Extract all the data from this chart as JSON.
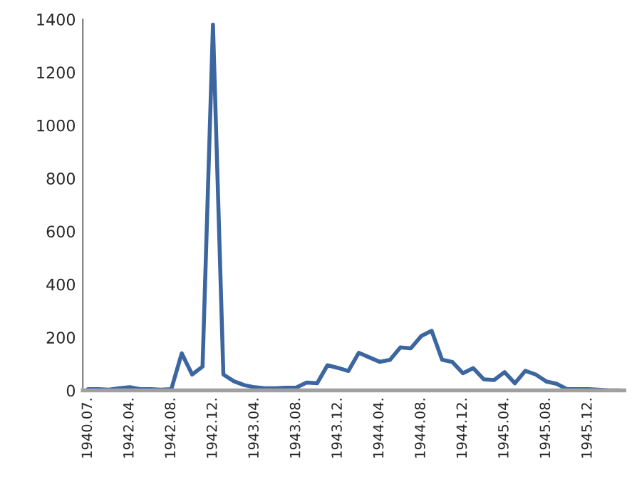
{
  "chart_data": {
    "type": "line",
    "categories": [
      "1940.07.",
      null,
      null,
      null,
      "1942.04.",
      null,
      null,
      null,
      "1942.08.",
      null,
      null,
      null,
      "1942.12.",
      null,
      null,
      null,
      "1943.04.",
      null,
      null,
      null,
      "1943.08.",
      null,
      null,
      null,
      "1943.12.",
      null,
      null,
      null,
      "1944.04.",
      null,
      null,
      null,
      "1944.08.",
      null,
      null,
      null,
      "1944.12.",
      null,
      null,
      null,
      "1945.04.",
      null,
      null,
      null,
      "1945.08.",
      null,
      null,
      null,
      "1945.12.",
      null,
      null,
      null
    ],
    "series": [
      {
        "color": "#3c66a0",
        "values": [
          5,
          5,
          3,
          8,
          12,
          5,
          5,
          3,
          5,
          140,
          60,
          90,
          1380,
          60,
          35,
          20,
          12,
          8,
          8,
          10,
          11,
          30,
          27,
          95,
          85,
          73,
          142,
          125,
          108,
          115,
          162,
          159,
          205,
          225,
          116,
          107,
          65,
          84,
          42,
          39,
          69,
          27,
          74,
          60,
          34,
          25,
          5,
          5,
          5,
          3,
          0,
          0
        ]
      }
    ],
    "ylim": [
      0,
      1400
    ],
    "yticks": [
      0,
      200,
      400,
      600,
      800,
      1000,
      1200,
      1400
    ],
    "grid": false,
    "marker": "none",
    "line_style": "solid"
  }
}
